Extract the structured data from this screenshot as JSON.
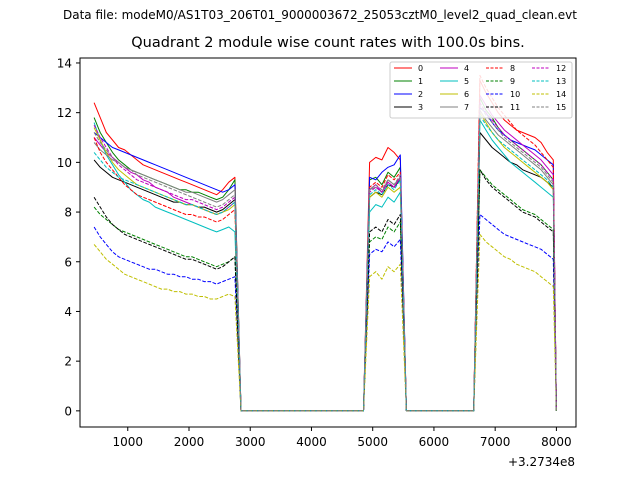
{
  "chart_data": {
    "type": "line",
    "suptitle": "Data file: modeM0/AS1T03_206T01_9000003672_25053cztM0_level2_quad_clean.evt",
    "title": "Quadrant 2 module wise count rates with 100.0s bins.",
    "xlabel": "",
    "ylabel": "",
    "x_offset_label": "+3.2734e8",
    "xlim": [
      220,
      8320
    ],
    "ylim": [
      -0.65,
      14.2
    ],
    "x_ticks": [
      1000,
      2000,
      3000,
      4000,
      5000,
      6000,
      7000,
      8000
    ],
    "y_ticks": [
      0,
      2,
      4,
      6,
      8,
      10,
      12,
      14
    ],
    "grid": false,
    "legend_placement": "top-right",
    "segments": [
      {
        "x_start": 450,
        "x_end": 2750,
        "step": 100
      },
      {
        "x_start": 4950,
        "x_end": 5450,
        "step": 100
      },
      {
        "x_start": 6750,
        "x_end": 7950,
        "step": 100
      }
    ],
    "zero_points": [
      2850,
      2950,
      4850,
      5550,
      5650,
      6550,
      6650,
      8000
    ],
    "series": [
      {
        "name": "0",
        "color": "#ff0000",
        "dash": "solid",
        "seg": [
          [
            12.4,
            11.8,
            11.2,
            10.9,
            10.6,
            10.5,
            10.3,
            10.1,
            9.9,
            9.8,
            9.7,
            9.6,
            9.5,
            9.4,
            9.3,
            9.2,
            9.1,
            9.0,
            8.9,
            8.8,
            8.7,
            8.9,
            9.2,
            9.4
          ],
          [
            10.0,
            10.2,
            10.1,
            10.6,
            10.4,
            10.1
          ],
          [
            13.3,
            12.8,
            12.4,
            12.0,
            11.7,
            11.5,
            11.3,
            11.2,
            11.1,
            11.0,
            10.8,
            10.4,
            10.1
          ]
        ]
      },
      {
        "name": "1",
        "color": "#008000",
        "dash": "solid",
        "seg": [
          [
            11.8,
            11.2,
            10.8,
            10.4,
            10.1,
            9.9,
            9.7,
            9.6,
            9.5,
            9.4,
            9.3,
            9.2,
            9.1,
            9.0,
            8.9,
            8.9,
            8.8,
            8.8,
            8.7,
            8.6,
            8.5,
            8.6,
            8.9,
            9.3
          ],
          [
            9.3,
            9.4,
            9.1,
            9.6,
            9.4,
            9.8
          ],
          [
            12.6,
            12.1,
            11.8,
            11.4,
            11.1,
            10.9,
            10.7,
            10.5,
            10.3,
            10.1,
            9.9,
            9.6,
            9.3
          ]
        ]
      },
      {
        "name": "2",
        "color": "#0000ff",
        "dash": "solid",
        "seg": [
          [
            11.2,
            11.0,
            10.8,
            10.6,
            10.5,
            10.4,
            10.3,
            10.2,
            10.1,
            10.0,
            9.9,
            9.8,
            9.7,
            9.6,
            9.5,
            9.4,
            9.3,
            9.2,
            9.1,
            9.0,
            8.9,
            8.8,
            8.9,
            9.1
          ],
          [
            9.4,
            9.3,
            9.6,
            9.8,
            9.9,
            10.3
          ],
          [
            12.2,
            12.0,
            11.6,
            11.3,
            11.1,
            10.9,
            10.8,
            10.7,
            10.6,
            10.5,
            10.3,
            10.1,
            9.9
          ]
        ]
      },
      {
        "name": "3",
        "color": "#000000",
        "dash": "solid",
        "seg": [
          [
            10.1,
            9.8,
            9.6,
            9.4,
            9.3,
            9.2,
            9.1,
            9.0,
            8.9,
            8.8,
            8.7,
            8.6,
            8.5,
            8.4,
            8.4,
            8.3,
            8.3,
            8.2,
            8.2,
            8.1,
            8.0,
            8.1,
            8.3,
            8.5
          ],
          [
            8.6,
            8.8,
            8.7,
            9.1,
            9.0,
            9.3
          ],
          [
            11.2,
            10.9,
            10.6,
            10.4,
            10.2,
            10.0,
            9.9,
            9.7,
            9.6,
            9.5,
            9.4,
            9.2,
            9.0
          ]
        ]
      },
      {
        "name": "4",
        "color": "#bf00bf",
        "dash": "solid",
        "seg": [
          [
            11.0,
            10.7,
            10.4,
            10.2,
            10.0,
            9.8,
            9.6,
            9.5,
            9.3,
            9.2,
            9.0,
            8.9,
            8.8,
            8.6,
            8.5,
            8.4,
            8.3,
            8.2,
            8.1,
            8.0,
            7.9,
            8.0,
            8.2,
            8.4
          ],
          [
            8.9,
            9.1,
            8.8,
            9.2,
            9.0,
            9.4
          ],
          [
            12.7,
            12.3,
            11.9,
            11.6,
            11.3,
            11.1,
            10.9,
            10.7,
            10.5,
            10.3,
            10.1,
            9.8,
            9.5
          ]
        ]
      },
      {
        "name": "5",
        "color": "#00bfbf",
        "dash": "solid",
        "seg": [
          [
            11.6,
            10.9,
            10.3,
            9.9,
            9.5,
            9.2,
            8.9,
            8.7,
            8.5,
            8.4,
            8.2,
            8.1,
            8.0,
            7.9,
            7.8,
            7.7,
            7.6,
            7.5,
            7.4,
            7.3,
            7.2,
            7.3,
            7.4,
            7.2
          ],
          [
            8.0,
            8.3,
            8.2,
            8.6,
            8.4,
            8.8
          ],
          [
            11.7,
            11.3,
            10.9,
            10.6,
            10.3,
            10.0,
            9.8,
            9.6,
            9.4,
            9.2,
            9.0,
            8.8,
            8.6
          ]
        ]
      },
      {
        "name": "6",
        "color": "#bfbf00",
        "dash": "solid",
        "seg": [
          [
            11.4,
            10.9,
            10.4,
            10.0,
            9.7,
            9.5,
            9.3,
            9.1,
            9.0,
            8.9,
            8.8,
            8.7,
            8.6,
            8.5,
            8.4,
            8.3,
            8.3,
            8.2,
            8.1,
            8.0,
            7.9,
            8.0,
            8.1,
            8.3
          ],
          [
            8.6,
            8.8,
            8.6,
            9.0,
            8.8,
            9.0
          ],
          [
            12.0,
            11.6,
            11.2,
            10.9,
            10.6,
            10.4,
            10.2,
            10.0,
            9.8,
            9.6,
            9.4,
            9.2,
            8.9
          ]
        ]
      },
      {
        "name": "7",
        "color": "#808080",
        "dash": "solid",
        "seg": [
          [
            10.8,
            10.5,
            10.3,
            10.1,
            10.0,
            9.8,
            9.7,
            9.6,
            9.5,
            9.4,
            9.3,
            9.2,
            9.1,
            9.0,
            8.9,
            8.8,
            8.8,
            8.7,
            8.6,
            8.5,
            8.4,
            8.5,
            8.7,
            8.9
          ],
          [
            8.9,
            9.0,
            8.8,
            9.3,
            9.1,
            9.4
          ],
          [
            12.1,
            11.7,
            11.4,
            11.1,
            10.9,
            10.7,
            10.5,
            10.3,
            10.1,
            9.9,
            9.7,
            9.4,
            9.1
          ]
        ]
      },
      {
        "name": "8",
        "color": "#ff0000",
        "dash": "dashed",
        "seg": [
          [
            11.0,
            10.4,
            10.0,
            9.7,
            9.4,
            9.1,
            8.9,
            8.7,
            8.6,
            8.5,
            8.4,
            8.3,
            8.2,
            8.1,
            8.0,
            7.9,
            7.9,
            7.8,
            7.8,
            7.7,
            7.6,
            7.7,
            7.9,
            8.1
          ],
          [
            9.0,
            9.2,
            9.0,
            9.5,
            9.3,
            9.6
          ],
          [
            13.5,
            13.0,
            12.6,
            12.2,
            11.9,
            11.6,
            11.3,
            11.1,
            10.9,
            10.7,
            10.4,
            10.1,
            9.8
          ]
        ]
      },
      {
        "name": "9",
        "color": "#008000",
        "dash": "dashed",
        "seg": [
          [
            8.2,
            7.9,
            7.7,
            7.5,
            7.3,
            7.2,
            7.1,
            7.0,
            6.9,
            6.8,
            6.7,
            6.6,
            6.5,
            6.4,
            6.3,
            6.2,
            6.2,
            6.1,
            6.0,
            5.9,
            5.8,
            5.9,
            6.0,
            6.2
          ],
          [
            6.8,
            7.0,
            6.9,
            7.4,
            7.2,
            7.6
          ],
          [
            9.7,
            9.4,
            9.1,
            8.9,
            8.7,
            8.5,
            8.3,
            8.1,
            8.0,
            7.9,
            7.7,
            7.5,
            7.3
          ]
        ]
      },
      {
        "name": "10",
        "color": "#0000ff",
        "dash": "dashed",
        "seg": [
          [
            7.4,
            7.0,
            6.7,
            6.4,
            6.2,
            6.1,
            6.0,
            5.9,
            5.8,
            5.7,
            5.7,
            5.6,
            5.5,
            5.5,
            5.4,
            5.4,
            5.3,
            5.3,
            5.2,
            5.2,
            5.1,
            5.2,
            5.3,
            5.4
          ],
          [
            6.3,
            6.5,
            6.4,
            6.8,
            6.6,
            6.9
          ],
          [
            7.9,
            7.7,
            7.5,
            7.3,
            7.1,
            7.0,
            6.9,
            6.8,
            6.7,
            6.6,
            6.5,
            6.3,
            6.1
          ]
        ]
      },
      {
        "name": "11",
        "color": "#000000",
        "dash": "dashed",
        "seg": [
          [
            8.6,
            8.2,
            7.8,
            7.5,
            7.3,
            7.1,
            7.0,
            6.9,
            6.8,
            6.7,
            6.6,
            6.5,
            6.4,
            6.3,
            6.2,
            6.1,
            6.1,
            6.0,
            5.9,
            5.8,
            5.7,
            5.8,
            6.0,
            6.2
          ],
          [
            7.2,
            7.4,
            7.2,
            7.7,
            7.5,
            7.9
          ],
          [
            9.7,
            9.3,
            9.0,
            8.8,
            8.6,
            8.4,
            8.2,
            8.0,
            7.9,
            7.8,
            7.6,
            7.4,
            7.2
          ]
        ]
      },
      {
        "name": "12",
        "color": "#bf00bf",
        "dash": "dashed",
        "seg": [
          [
            11.5,
            11.0,
            10.6,
            10.2,
            9.9,
            9.7,
            9.5,
            9.3,
            9.2,
            9.1,
            9.0,
            8.9,
            8.8,
            8.7,
            8.6,
            8.5,
            8.5,
            8.4,
            8.3,
            8.2,
            8.1,
            8.2,
            8.4,
            8.6
          ],
          [
            8.8,
            9.0,
            8.8,
            9.2,
            9.0,
            9.4
          ],
          [
            12.4,
            12.0,
            11.7,
            11.4,
            11.1,
            10.9,
            10.7,
            10.5,
            10.3,
            10.1,
            9.9,
            9.6,
            9.3
          ]
        ]
      },
      {
        "name": "13",
        "color": "#00bfbf",
        "dash": "dashed",
        "seg": [
          [
            10.4,
            10.1,
            9.8,
            9.6,
            9.4,
            9.3,
            9.2,
            9.1,
            9.0,
            8.9,
            8.8,
            8.7,
            8.6,
            8.5,
            8.4,
            8.3,
            8.3,
            8.2,
            8.1,
            8.0,
            7.9,
            8.0,
            8.2,
            8.4
          ],
          [
            8.7,
            8.9,
            8.7,
            9.1,
            8.9,
            9.3
          ],
          [
            11.9,
            11.5,
            11.2,
            10.9,
            10.7,
            10.5,
            10.3,
            10.1,
            9.9,
            9.7,
            9.5,
            9.3,
            9.0
          ]
        ]
      },
      {
        "name": "14",
        "color": "#bfbf00",
        "dash": "dashed",
        "seg": [
          [
            6.7,
            6.4,
            6.1,
            5.9,
            5.7,
            5.5,
            5.4,
            5.3,
            5.2,
            5.1,
            5.0,
            4.9,
            4.9,
            4.8,
            4.8,
            4.7,
            4.7,
            4.6,
            4.6,
            4.5,
            4.5,
            4.6,
            4.7,
            4.6
          ],
          [
            5.4,
            5.6,
            5.3,
            5.8,
            5.6,
            5.9
          ],
          [
            7.1,
            6.8,
            6.6,
            6.4,
            6.2,
            6.1,
            5.9,
            5.8,
            5.7,
            5.6,
            5.4,
            5.2,
            5.0
          ]
        ]
      },
      {
        "name": "15",
        "color": "#808080",
        "dash": "dashed",
        "seg": [
          [
            11.2,
            10.8,
            10.5,
            10.2,
            10.0,
            9.8,
            9.7,
            9.5,
            9.4,
            9.3,
            9.2,
            9.1,
            9.0,
            8.9,
            8.8,
            8.7,
            8.6,
            8.5,
            8.4,
            8.3,
            8.2,
            8.3,
            8.5,
            8.7
          ],
          [
            8.9,
            9.1,
            8.9,
            9.3,
            9.1,
            9.5
          ],
          [
            12.3,
            11.9,
            11.6,
            11.3,
            11.0,
            10.8,
            10.6,
            10.4,
            10.2,
            10.0,
            9.8,
            9.5,
            9.2
          ]
        ]
      }
    ]
  }
}
